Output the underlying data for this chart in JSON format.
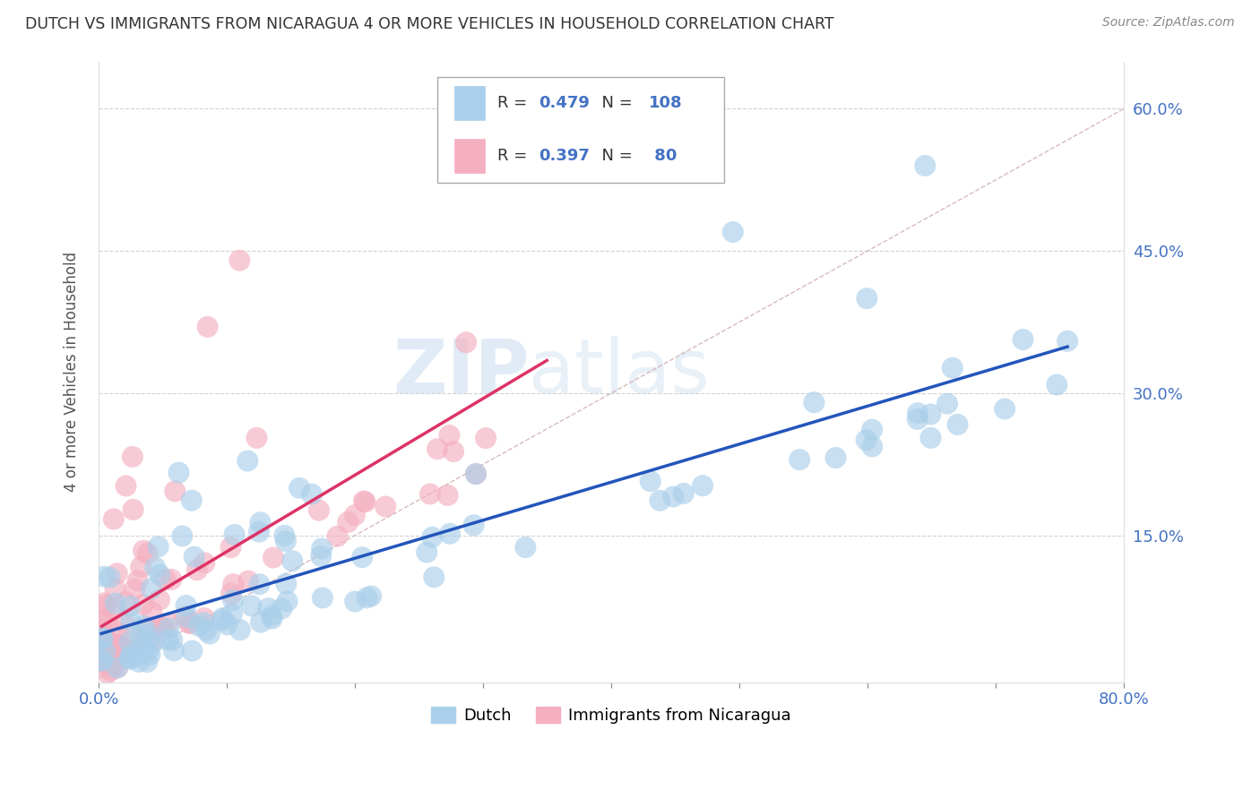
{
  "title": "DUTCH VS IMMIGRANTS FROM NICARAGUA 4 OR MORE VEHICLES IN HOUSEHOLD CORRELATION CHART",
  "source": "Source: ZipAtlas.com",
  "ylabel": "4 or more Vehicles in Household",
  "xlim": [
    0.0,
    0.8
  ],
  "ylim": [
    -0.005,
    0.65
  ],
  "legend_labels": [
    "Dutch",
    "Immigrants from Nicaragua"
  ],
  "dutch_R": 0.479,
  "dutch_N": 108,
  "nicaragua_R": 0.397,
  "nicaragua_N": 80,
  "dutch_color": "#aacfea",
  "nicaragua_color": "#f4afc0",
  "dutch_line_color": "#2255bb",
  "nicaragua_line_color": "#dd3366",
  "legend_text_color": "#4472c4",
  "watermark": "ZIPatlas",
  "background_color": "#ffffff",
  "grid_color": "#cccccc",
  "ref_line_color": "#ccaaaa"
}
